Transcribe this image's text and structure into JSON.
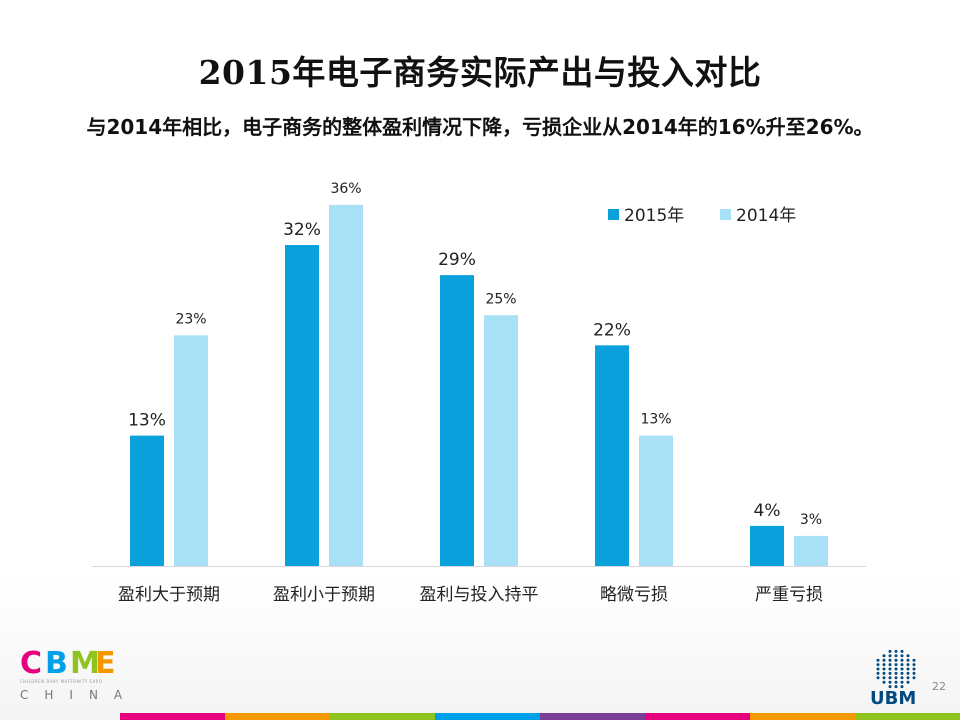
{
  "slide": {
    "title": "2015年电子商务实际产出与投入对比",
    "subtitle": "与2014年相比，电子商务的整体盈利情况下降，亏损企业从2014年的16%升至26%。",
    "page_number": "22"
  },
  "logos": {
    "cbme_letters": [
      "C",
      "B",
      "M",
      "E"
    ],
    "cbme_sub": "CHILDREN BABY MATERNITY EXPO",
    "cbme_china": "CHINA",
    "ubm": "UBM"
  },
  "colors": {
    "series_2015": "#0aa0dc",
    "series_2014": "#a8e0f6",
    "cbme": [
      "#e6007e",
      "#00a0e9",
      "#8fc31f",
      "#f39800"
    ],
    "stripe": [
      "#e6007e",
      "#f39800",
      "#8fc31f",
      "#00a0e9",
      "#7c3f97",
      "#e6007e",
      "#f39800",
      "#8fc31f"
    ]
  },
  "chart_data": {
    "type": "bar",
    "categories": [
      "盈利大于预期",
      "盈利小于预期",
      "盈利与投入持平",
      "略微亏损",
      "严重亏损"
    ],
    "series": [
      {
        "name": "2015年",
        "values": [
          13,
          32,
          29,
          22,
          4
        ],
        "labels": [
          "13%",
          "32%",
          "29%",
          "22%",
          "4%"
        ]
      },
      {
        "name": "2014年",
        "values": [
          23,
          36,
          25,
          13,
          3
        ],
        "labels": [
          "23%",
          "36%",
          "25%",
          "13%",
          "3%"
        ]
      }
    ],
    "unit": "%",
    "ylim": [
      0,
      36
    ],
    "grid": false,
    "legend": "top-right"
  }
}
